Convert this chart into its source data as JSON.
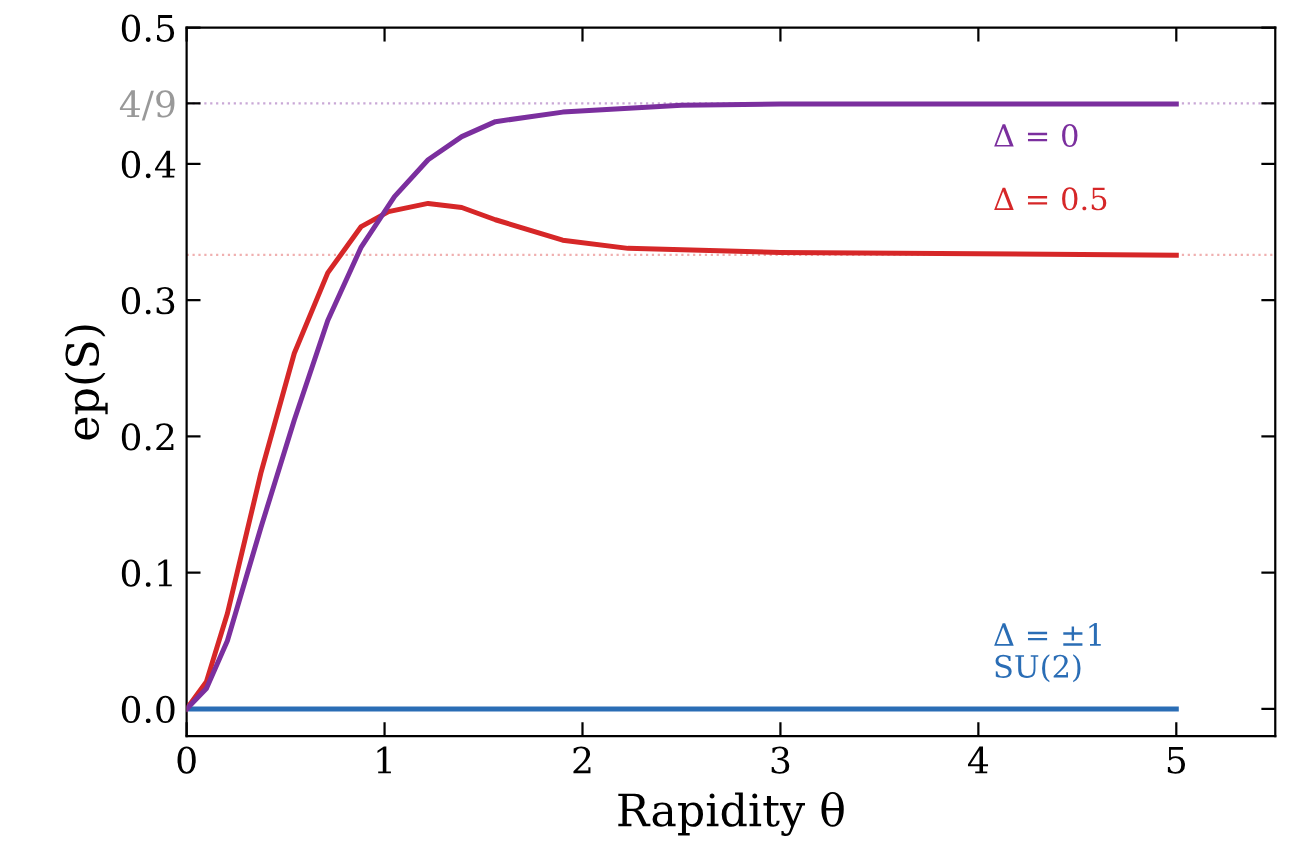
{
  "chart_data": {
    "type": "line",
    "xlabel": "Rapidity θ",
    "ylabel": "ep(S)",
    "xlim": [
      0,
      5.5
    ],
    "ylim": [
      -0.02,
      0.5
    ],
    "xticks": [
      0,
      1,
      2,
      3,
      4,
      5
    ],
    "yticks": [
      {
        "value": 0,
        "label": "0.0"
      },
      0.1,
      0.2,
      0.3,
      0.4,
      {
        "value": 0.4444444444444444,
        "label": "4/9"
      },
      0.5
    ],
    "grid": false,
    "marker": "none",
    "line_style": "solid",
    "ref_lines": [
      {
        "axis": "y",
        "value": 0.4444444444444444,
        "label": null,
        "color": "#c9a8d6",
        "line_style": "dotted"
      },
      {
        "axis": "y",
        "value": 0.3333,
        "label": null,
        "color": "#f0b0b0",
        "line_style": "dotted"
      }
    ],
    "series": [
      {
        "name": "Δ = ±1\nSU(2)",
        "color": "#2a6db5",
        "x": [
          0,
          5
        ],
        "values": [
          0,
          0
        ]
      },
      {
        "name": "Δ = 0.5",
        "color": "#d62728",
        "x": [
          0,
          0.1,
          0.206,
          0.375,
          0.544,
          0.713,
          0.882,
          1.02,
          1.22,
          1.39,
          1.56,
          1.9,
          2.23,
          3,
          4,
          5
        ],
        "values": [
          0,
          0.02,
          0.07,
          0.173,
          0.261,
          0.32,
          0.354,
          0.365,
          0.371,
          0.368,
          0.359,
          0.344,
          0.338,
          0.335,
          0.334,
          0.333
        ]
      },
      {
        "name": "Δ = 0",
        "color": "#7b2f9e",
        "x": [
          0,
          0.1,
          0.206,
          0.375,
          0.544,
          0.713,
          0.882,
          1.05,
          1.22,
          1.39,
          1.56,
          1.9,
          2.5,
          3,
          4,
          5
        ],
        "values": [
          0,
          0.015,
          0.05,
          0.133,
          0.212,
          0.285,
          0.339,
          0.376,
          0.403,
          0.42,
          0.431,
          0.438,
          0.443,
          0.444,
          0.444,
          0.444
        ]
      }
    ]
  }
}
